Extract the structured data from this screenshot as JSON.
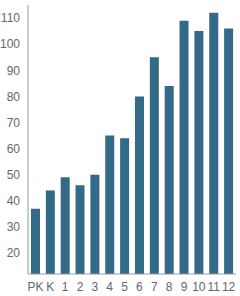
{
  "chart_data": {
    "type": "bar",
    "categories": [
      "PK",
      "K",
      "1",
      "2",
      "3",
      "4",
      "5",
      "6",
      "7",
      "8",
      "9",
      "10",
      "11",
      "12"
    ],
    "values": [
      37,
      44,
      49,
      46,
      50,
      65,
      64,
      80,
      95,
      84,
      109,
      105,
      112,
      106
    ],
    "color": "#336a87",
    "ylim": [
      12,
      115
    ],
    "yticks": [
      20,
      30,
      40,
      50,
      60,
      70,
      80,
      90,
      100,
      110
    ],
    "grid": false
  }
}
